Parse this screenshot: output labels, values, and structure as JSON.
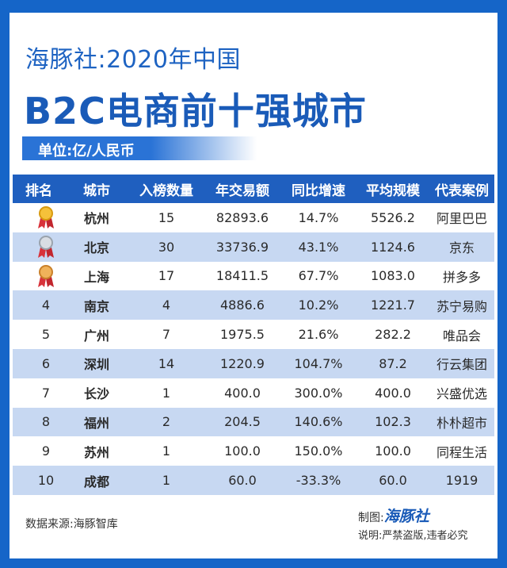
{
  "header": {
    "line1": "海豚社:2020年中国",
    "line2": "B2C电商前十强城市",
    "unit": "单位:亿/人民币"
  },
  "table": {
    "columns": [
      "排名",
      "城市",
      "入榜数量",
      "年交易额",
      "同比增速",
      "平均规模",
      "代表案例"
    ],
    "rows": [
      {
        "rank": "",
        "medal": "gold-medal-icon",
        "city": "杭州",
        "count": "15",
        "volume": "82893.6",
        "growth": "14.7%",
        "avg": "5526.2",
        "example": "阿里巴巴"
      },
      {
        "rank": "",
        "medal": "silver-medal-icon",
        "city": "北京",
        "count": "30",
        "volume": "33736.9",
        "growth": "43.1%",
        "avg": "1124.6",
        "example": "京东"
      },
      {
        "rank": "",
        "medal": "bronze-medal-icon",
        "city": "上海",
        "count": "17",
        "volume": "18411.5",
        "growth": "67.7%",
        "avg": "1083.0",
        "example": "拼多多"
      },
      {
        "rank": "4",
        "city": "南京",
        "count": "4",
        "volume": "4886.6",
        "growth": "10.2%",
        "avg": "1221.7",
        "example": "苏宁易购"
      },
      {
        "rank": "5",
        "city": "广州",
        "count": "7",
        "volume": "1975.5",
        "growth": "21.6%",
        "avg": "282.2",
        "example": "唯品会"
      },
      {
        "rank": "6",
        "city": "深圳",
        "count": "14",
        "volume": "1220.9",
        "growth": "104.7%",
        "avg": "87.2",
        "example": "行云集团"
      },
      {
        "rank": "7",
        "city": "长沙",
        "count": "1",
        "volume": "400.0",
        "growth": "300.0%",
        "avg": "400.0",
        "example": "兴盛优选"
      },
      {
        "rank": "8",
        "city": "福州",
        "count": "2",
        "volume": "204.5",
        "growth": "140.6%",
        "avg": "102.3",
        "example": "朴朴超市"
      },
      {
        "rank": "9",
        "city": "苏州",
        "count": "1",
        "volume": "100.0",
        "growth": "150.0%",
        "avg": "100.0",
        "example": "同程生活"
      },
      {
        "rank": "10",
        "city": "成都",
        "count": "1",
        "volume": "60.0",
        "growth": "-33.3%",
        "avg": "60.0",
        "example": "1919"
      }
    ]
  },
  "footer": {
    "source": "数据来源:海豚智库",
    "maker_label": "制图:",
    "maker_brand": "海豚社",
    "notice": "说明:严禁盗版,违者必究"
  },
  "colors": {
    "frame": "#1565c8",
    "header_row": "#1f5fbf",
    "stripe": "#c7d8f2",
    "title": "#1a5bb8"
  }
}
